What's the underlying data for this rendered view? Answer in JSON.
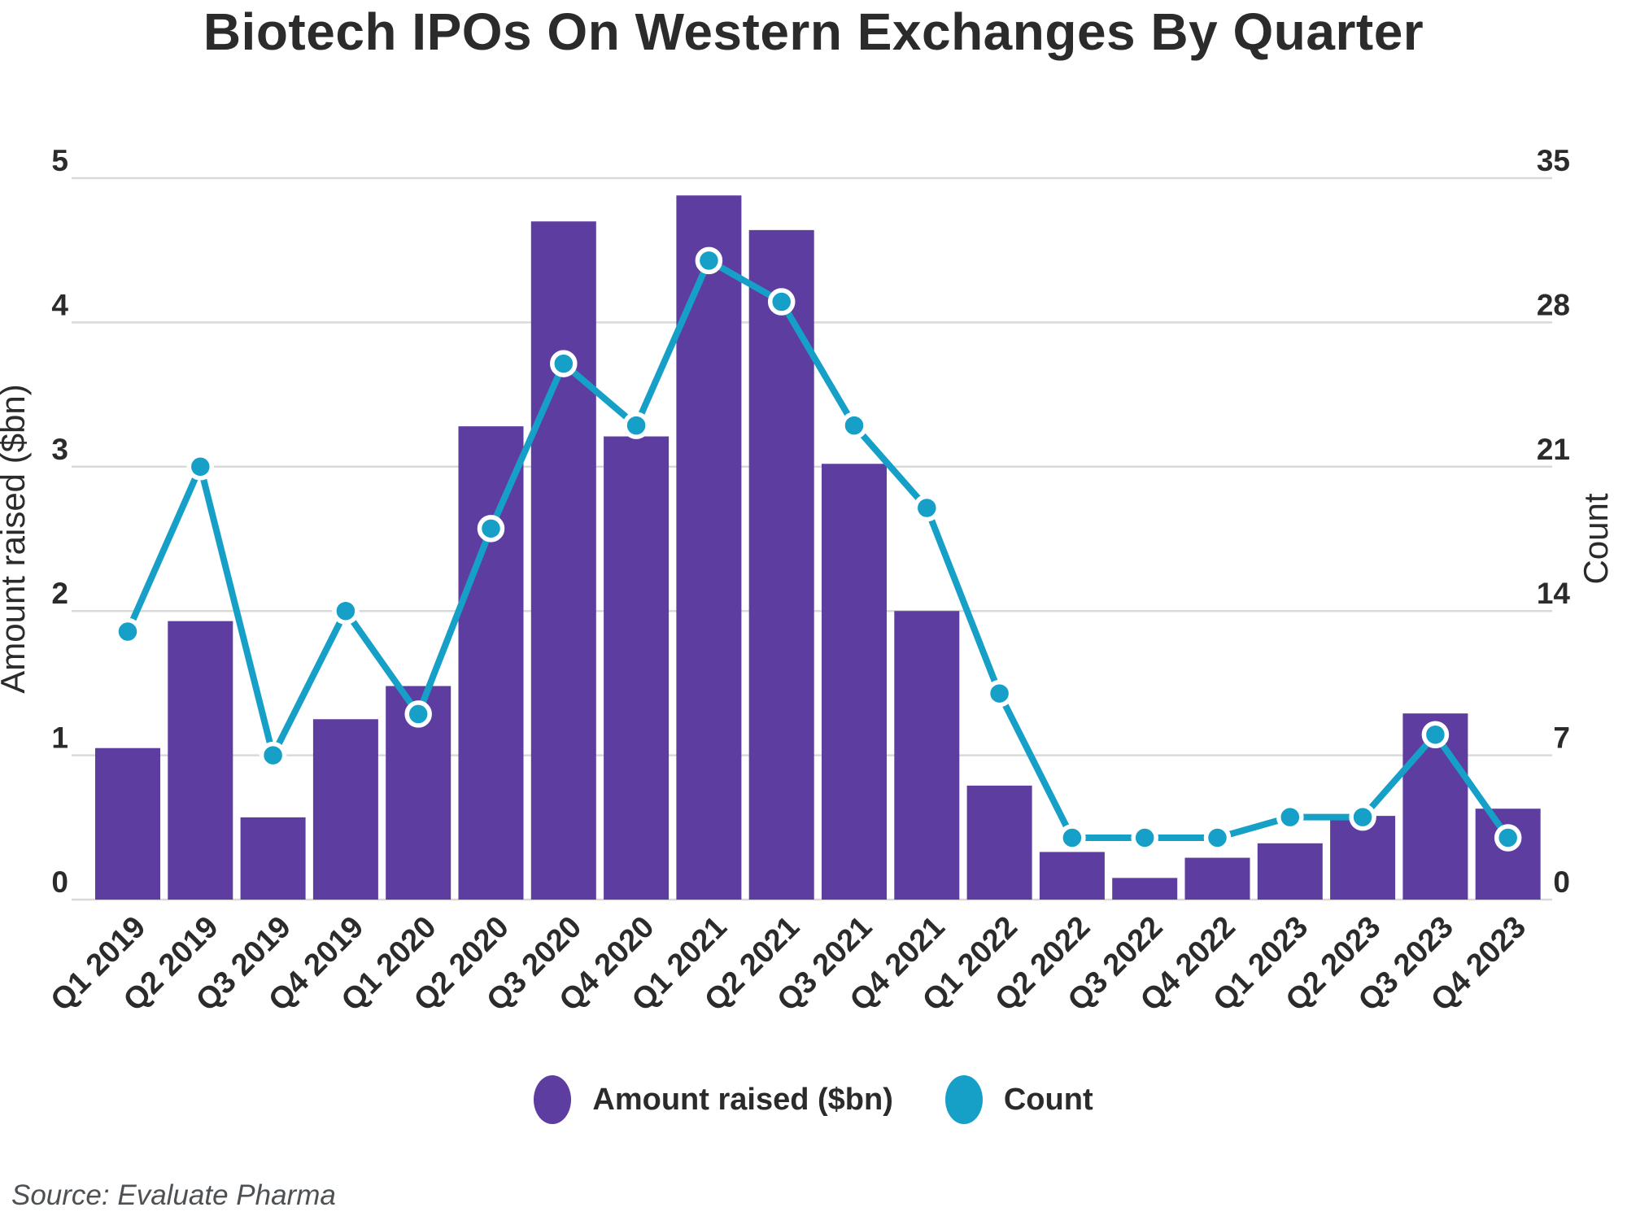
{
  "source": {
    "text": "Source: Evaluate Pharma"
  },
  "colors": {
    "bar": "#5E3DA0",
    "line": "#16A0C8",
    "marker_ring": "#ffffff",
    "text": "#2b2b2b",
    "grid": "#D9D9D9",
    "source_text": "#4d5154"
  },
  "legend": [
    {
      "label": "Amount raised ($bn)",
      "color": "#5E3DA0"
    },
    {
      "label": "Count",
      "color": "#16A0C8"
    }
  ],
  "chart_data": {
    "type": "bar",
    "subtype": "bar+line dual axis",
    "title": "Biotech IPOs On Western Exchanges By Quarter",
    "categories": [
      "Q1 2019",
      "Q2 2019",
      "Q3 2019",
      "Q4 2019",
      "Q1 2020",
      "Q2 2020",
      "Q3 2020",
      "Q4 2020",
      "Q1 2021",
      "Q2 2021",
      "Q3 2021",
      "Q4 2021",
      "Q1 2022",
      "Q2 2022",
      "Q3 2022",
      "Q4 2022",
      "Q1 2023",
      "Q2 2023",
      "Q3 2023",
      "Q4 2023"
    ],
    "series": [
      {
        "name": "Amount raised ($bn)",
        "type": "bar",
        "axis": "left",
        "values": [
          1.05,
          1.93,
          0.57,
          1.25,
          1.48,
          3.28,
          4.7,
          3.21,
          4.88,
          4.64,
          3.02,
          2.0,
          0.79,
          0.33,
          0.15,
          0.29,
          0.39,
          0.58,
          1.29,
          0.63
        ]
      },
      {
        "name": "Count",
        "type": "line",
        "axis": "right",
        "values": [
          13,
          21,
          7,
          14,
          9,
          18,
          26,
          23,
          31,
          29,
          23,
          19,
          10,
          3,
          3,
          3,
          4,
          4,
          8,
          3
        ]
      }
    ],
    "xlabel": "",
    "ylabel_left": "Amount raised ($bn)",
    "ylabel_right": "Count",
    "ylim_left": [
      0,
      5
    ],
    "ylim_right": [
      0,
      35
    ],
    "left_ticks": [
      0,
      1,
      2,
      3,
      4,
      5
    ],
    "right_ticks": [
      0,
      7,
      14,
      21,
      28,
      35
    ],
    "grid": "horizontal only",
    "legend_position": "bottom",
    "x_tick_rotation": -45
  }
}
